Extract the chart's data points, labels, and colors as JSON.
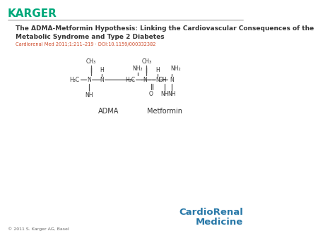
{
  "karger_color": "#00A87A",
  "karger_text": "KARGER",
  "title_text": "The ADMA-Metformin Hypothesis: Linking the Cardiovascular Consequences of the\nMetabolic Syndrome and Type 2 Diabetes",
  "subtitle_text": "Cardiorenal Med 2011;1:211–219 · DOI:10.1159/000332382",
  "copyright_text": "© 2011 S. Karger AG, Basel",
  "cardio_renal_line1": "CardioRenal",
  "cardio_renal_line2": "Medicine",
  "cardio_renal_color": "#2878A8",
  "adma_label": "ADMA",
  "metformin_label": "Metformin",
  "background_color": "#FFFFFF",
  "text_color": "#333333",
  "subtitle_color": "#CC4422",
  "line_color": "#555555"
}
